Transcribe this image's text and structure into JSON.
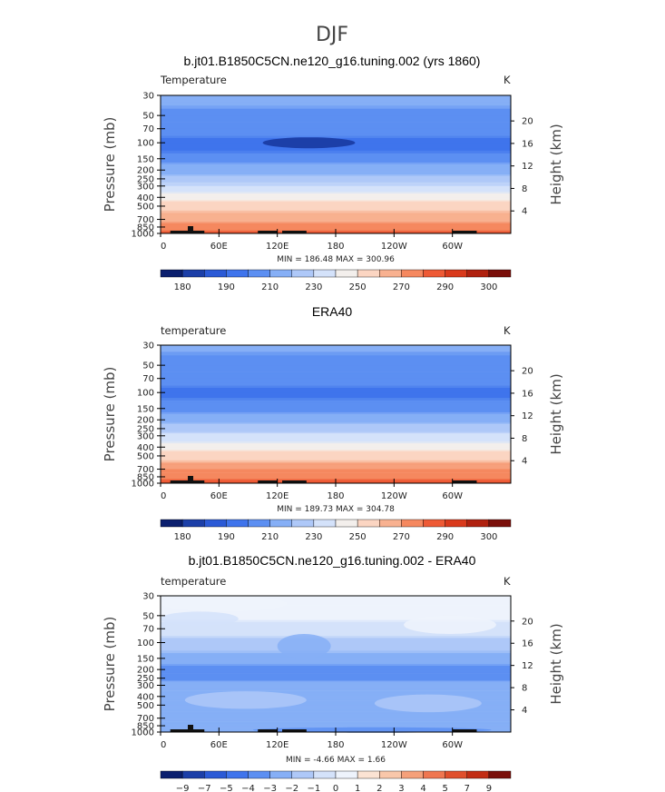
{
  "figure_title": "DJF",
  "colors": {
    "scale1": [
      "#0b1f6e",
      "#1c3fa8",
      "#2b5ad6",
      "#3f74ec",
      "#5c8ff2",
      "#86aff6",
      "#aec8f8",
      "#d4e2fa",
      "#f3efec",
      "#fbd5c2",
      "#f8b190",
      "#f5885f",
      "#ee5a35",
      "#d93a1c",
      "#b0210f",
      "#7a0f0a"
    ],
    "scale2": [
      "#0b1f6e",
      "#1c3fa8",
      "#2b5ad6",
      "#3f74ec",
      "#5c8ff2",
      "#86aff6",
      "#aec8f8",
      "#d4e2fa",
      "#eef3fc",
      "#fbe3d3",
      "#f9c7aa",
      "#f5a07a",
      "#ef7650",
      "#e04f2c",
      "#c22d14",
      "#7a0f0a"
    ]
  },
  "chart_data": [
    {
      "type": "heatmap",
      "title": "b.jt01.B1850C5CN.ne120_g16.tuning.002 (yrs 1860)",
      "variable": "Temperature",
      "units": "K",
      "ylabel": "Pressure  (mb)",
      "ylabel_right": "Height  (km)",
      "xlim": [
        0,
        360
      ],
      "ylim": [
        1000,
        30
      ],
      "xticks": [
        "0",
        "60E",
        "120E",
        "180",
        "120W",
        "60W"
      ],
      "yticks": [
        "30",
        "50",
        "70",
        "100",
        "150",
        "200",
        "250",
        "300",
        "400",
        "500",
        "700",
        "850",
        "1000"
      ],
      "height_ticks": [
        "4",
        "8",
        "12",
        "16",
        "20"
      ],
      "stats": "MIN = 186.48   MAX = 300.96",
      "colorbar_labels": [
        "180",
        "190",
        "210",
        "230",
        "250",
        "270",
        "290",
        "300"
      ],
      "profile_levels": [
        30,
        50,
        70,
        100,
        150,
        200,
        250,
        300,
        400,
        500,
        700,
        850,
        1000
      ],
      "profile_values": [
        212,
        209,
        205,
        195,
        208,
        217,
        225,
        232,
        247,
        257,
        270,
        278,
        283
      ],
      "cold_core": {
        "lon": [
          105,
          200
        ],
        "level": 100,
        "value": 188
      }
    },
    {
      "type": "heatmap",
      "title": "ERA40",
      "variable": "temperature",
      "units": "K",
      "ylabel": "Pressure  (mb)",
      "ylabel_right": "Height  (km)",
      "xlim": [
        0,
        360
      ],
      "ylim": [
        1000,
        30
      ],
      "xticks": [
        "0",
        "60E",
        "120E",
        "180",
        "120W",
        "60W"
      ],
      "yticks": [
        "30",
        "50",
        "70",
        "100",
        "150",
        "200",
        "250",
        "300",
        "400",
        "500",
        "700",
        "850",
        "1000"
      ],
      "height_ticks": [
        "4",
        "8",
        "12",
        "16",
        "20"
      ],
      "stats": "MIN = 189.73   MAX = 304.78",
      "colorbar_labels": [
        "180",
        "190",
        "210",
        "230",
        "250",
        "270",
        "290",
        "300"
      ],
      "profile_levels": [
        30,
        50,
        70,
        100,
        150,
        200,
        250,
        300,
        400,
        500,
        700,
        850,
        1000
      ],
      "profile_values": [
        211,
        208,
        204,
        198,
        209,
        218,
        226,
        233,
        248,
        258,
        271,
        279,
        284
      ]
    },
    {
      "type": "heatmap",
      "title": "b.jt01.B1850C5CN.ne120_g16.tuning.002 - ERA40",
      "variable": "temperature",
      "units": "K",
      "ylabel": "Pressure  (mb)",
      "ylabel_right": "Height  (km)",
      "xlim": [
        0,
        360
      ],
      "ylim": [
        1000,
        30
      ],
      "xticks": [
        "0",
        "60E",
        "120E",
        "180",
        "120W",
        "60W"
      ],
      "yticks": [
        "30",
        "50",
        "70",
        "100",
        "150",
        "200",
        "250",
        "300",
        "400",
        "500",
        "700",
        "850",
        "1000"
      ],
      "height_ticks": [
        "4",
        "8",
        "12",
        "16",
        "20"
      ],
      "stats": "MIN =   -4.66   MAX =     1.66",
      "colorbar_labels": [
        "−9",
        "−7",
        "−5",
        "−4",
        "−3",
        "−2",
        "−1",
        "0",
        "1",
        "2",
        "3",
        "4",
        "5",
        "7",
        "9"
      ],
      "profile_levels": [
        30,
        50,
        70,
        100,
        150,
        200,
        250,
        300,
        400,
        500,
        700,
        850,
        1000
      ],
      "profile_values": [
        0.5,
        0.2,
        -0.5,
        -1.5,
        -2.5,
        -3.3,
        -3.0,
        -2.5,
        -2.0,
        -2.2,
        -2.4,
        -2.2,
        -2.6
      ]
    }
  ]
}
